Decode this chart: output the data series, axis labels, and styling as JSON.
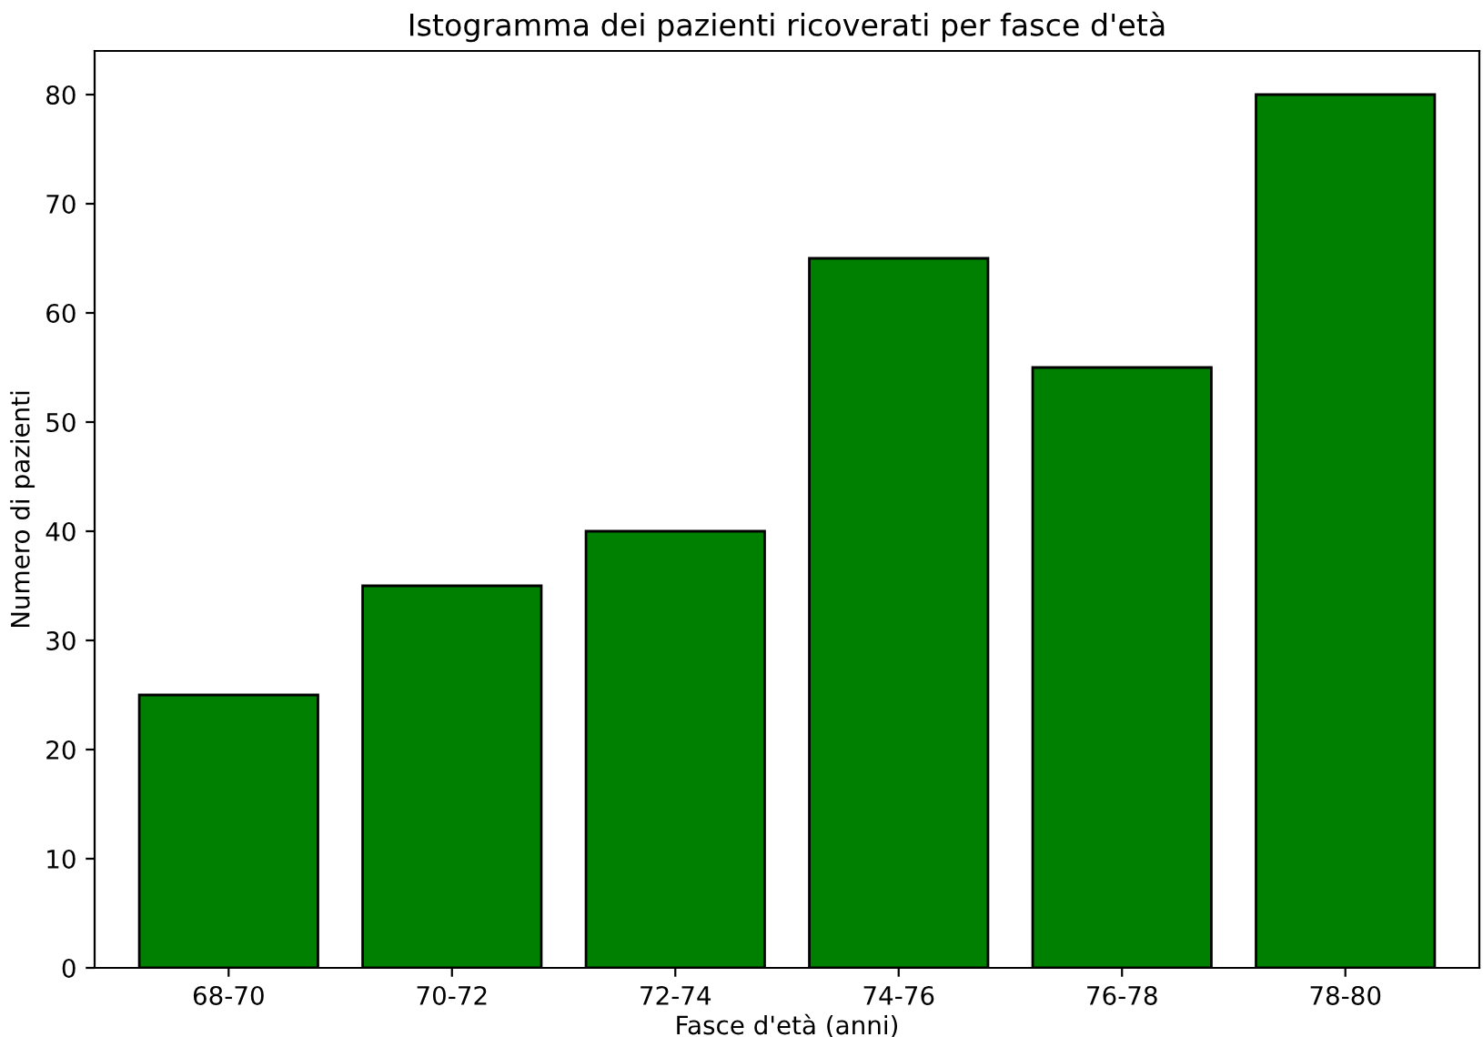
{
  "chart_data": {
    "type": "bar",
    "title": "Istogramma dei pazienti ricoverati per fasce d'età",
    "xlabel": "Fasce d'età (anni)",
    "ylabel": "Numero di pazienti",
    "categories": [
      "68-70",
      "70-72",
      "72-74",
      "74-76",
      "76-78",
      "78-80"
    ],
    "values": [
      25,
      35,
      40,
      65,
      55,
      80
    ],
    "color": "#008000",
    "ylim": [
      0,
      84
    ],
    "yticks": [
      0,
      10,
      20,
      30,
      40,
      50,
      60,
      70,
      80
    ],
    "grid": false
  }
}
